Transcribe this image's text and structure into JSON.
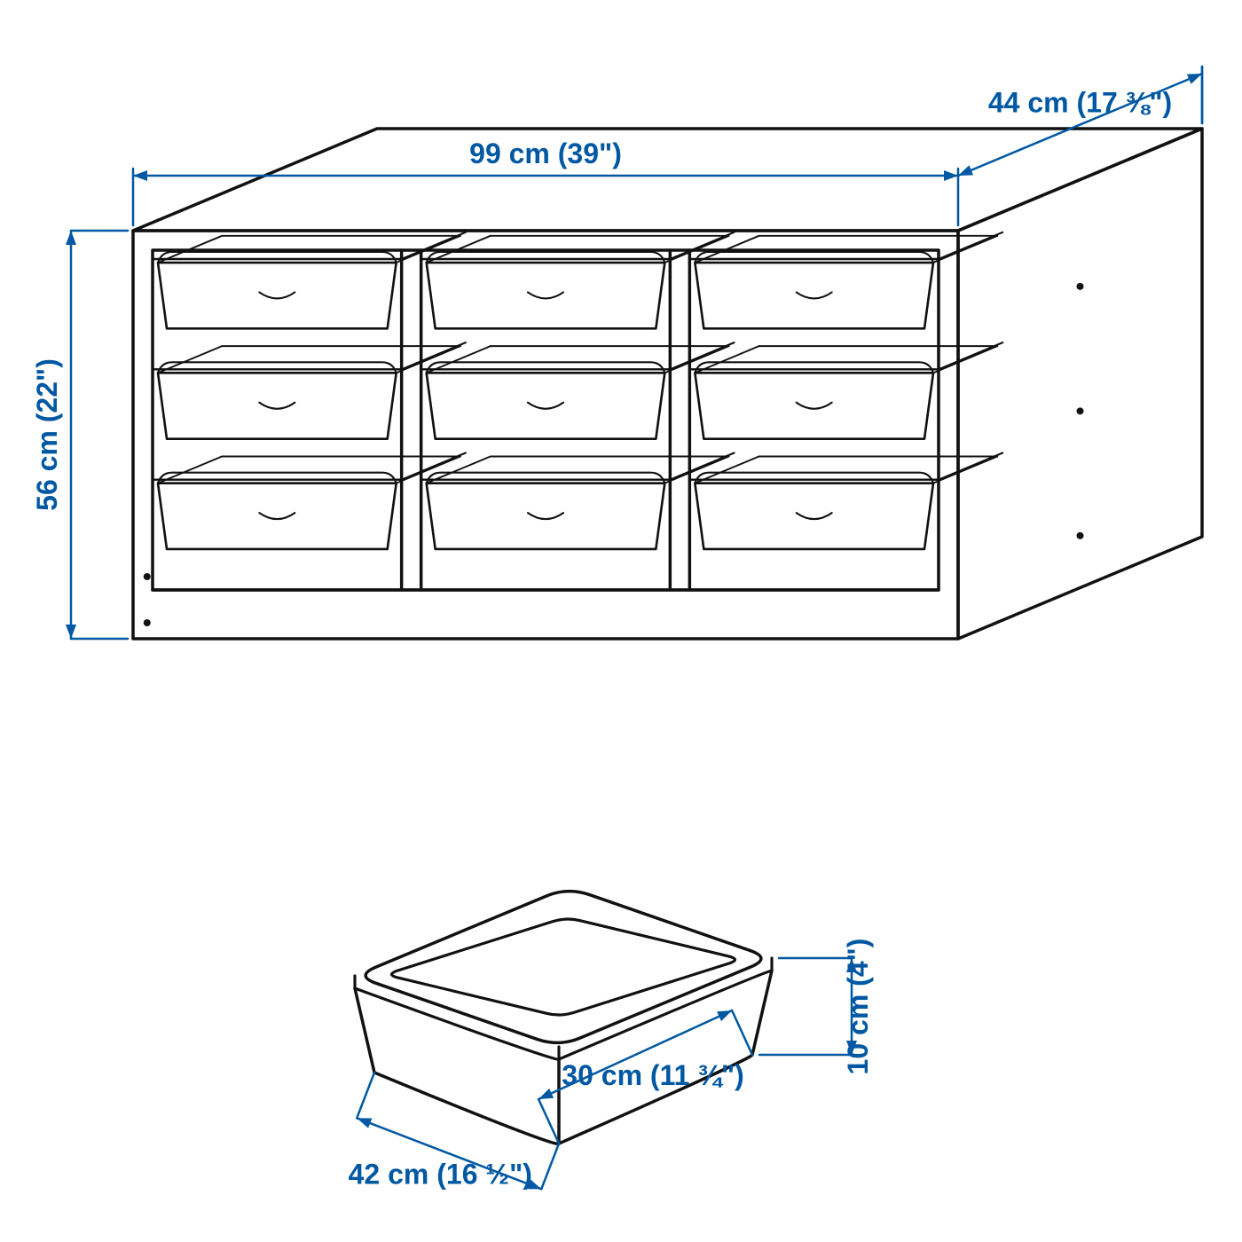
{
  "colors": {
    "line": "#111111",
    "dimension": "#0058a3",
    "background": "#ffffff"
  },
  "stroke": {
    "drawing_width": 3.5,
    "dimension_width": 2.5
  },
  "typography": {
    "dimension_fontsize": 32,
    "dimension_fontweight": 700,
    "font_family": "Arial, Helvetica, sans-serif"
  },
  "dimensions": {
    "width": {
      "label": "99 cm (39\")"
    },
    "depth": {
      "label": "44 cm (17 ⅜\")"
    },
    "height": {
      "label": "56 cm (22\")"
    },
    "box_length": {
      "label": "42 cm (16 ½\")"
    },
    "box_width": {
      "label": "30 cm (11 ¾\")"
    },
    "box_height": {
      "label": "10 cm (4\")"
    }
  },
  "unit": {
    "columns": 3,
    "rows": 3,
    "holes_per_side": 3
  }
}
